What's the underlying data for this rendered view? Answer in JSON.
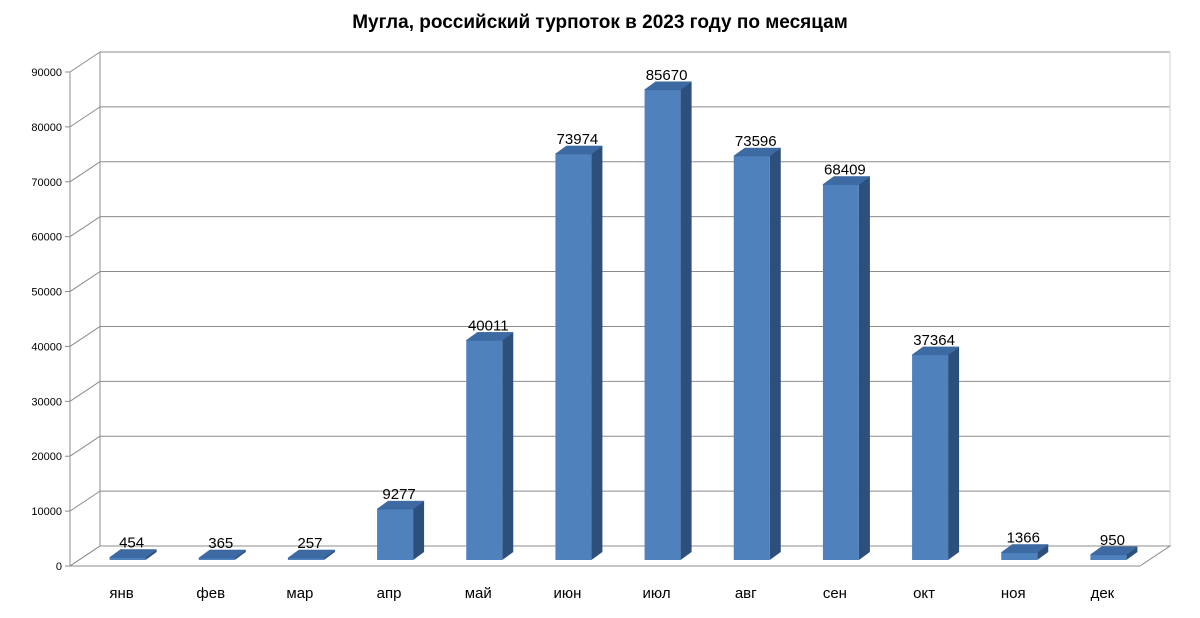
{
  "chart_data": {
    "type": "bar",
    "title": "Мугла, российский турпоток в 2023 году по месяцам",
    "xlabel": "",
    "ylabel": "",
    "categories": [
      "янв",
      "фев",
      "мар",
      "апр",
      "май",
      "июн",
      "июл",
      "авг",
      "сен",
      "окт",
      "ноя",
      "дек"
    ],
    "values": [
      454,
      365,
      257,
      9277,
      40011,
      73974,
      85670,
      73596,
      68409,
      37364,
      1366,
      950
    ],
    "ylim": [
      0,
      90000
    ],
    "yticks": [
      "0",
      "10000",
      "20000",
      "30000",
      "40000",
      "50000",
      "60000",
      "70000",
      "80000",
      "90000"
    ],
    "grid": true,
    "legend": "none",
    "bar_color": "#4f81bd",
    "bar_side_color": "#2c4f7c",
    "bar_top_color": "#3e6aa3"
  }
}
